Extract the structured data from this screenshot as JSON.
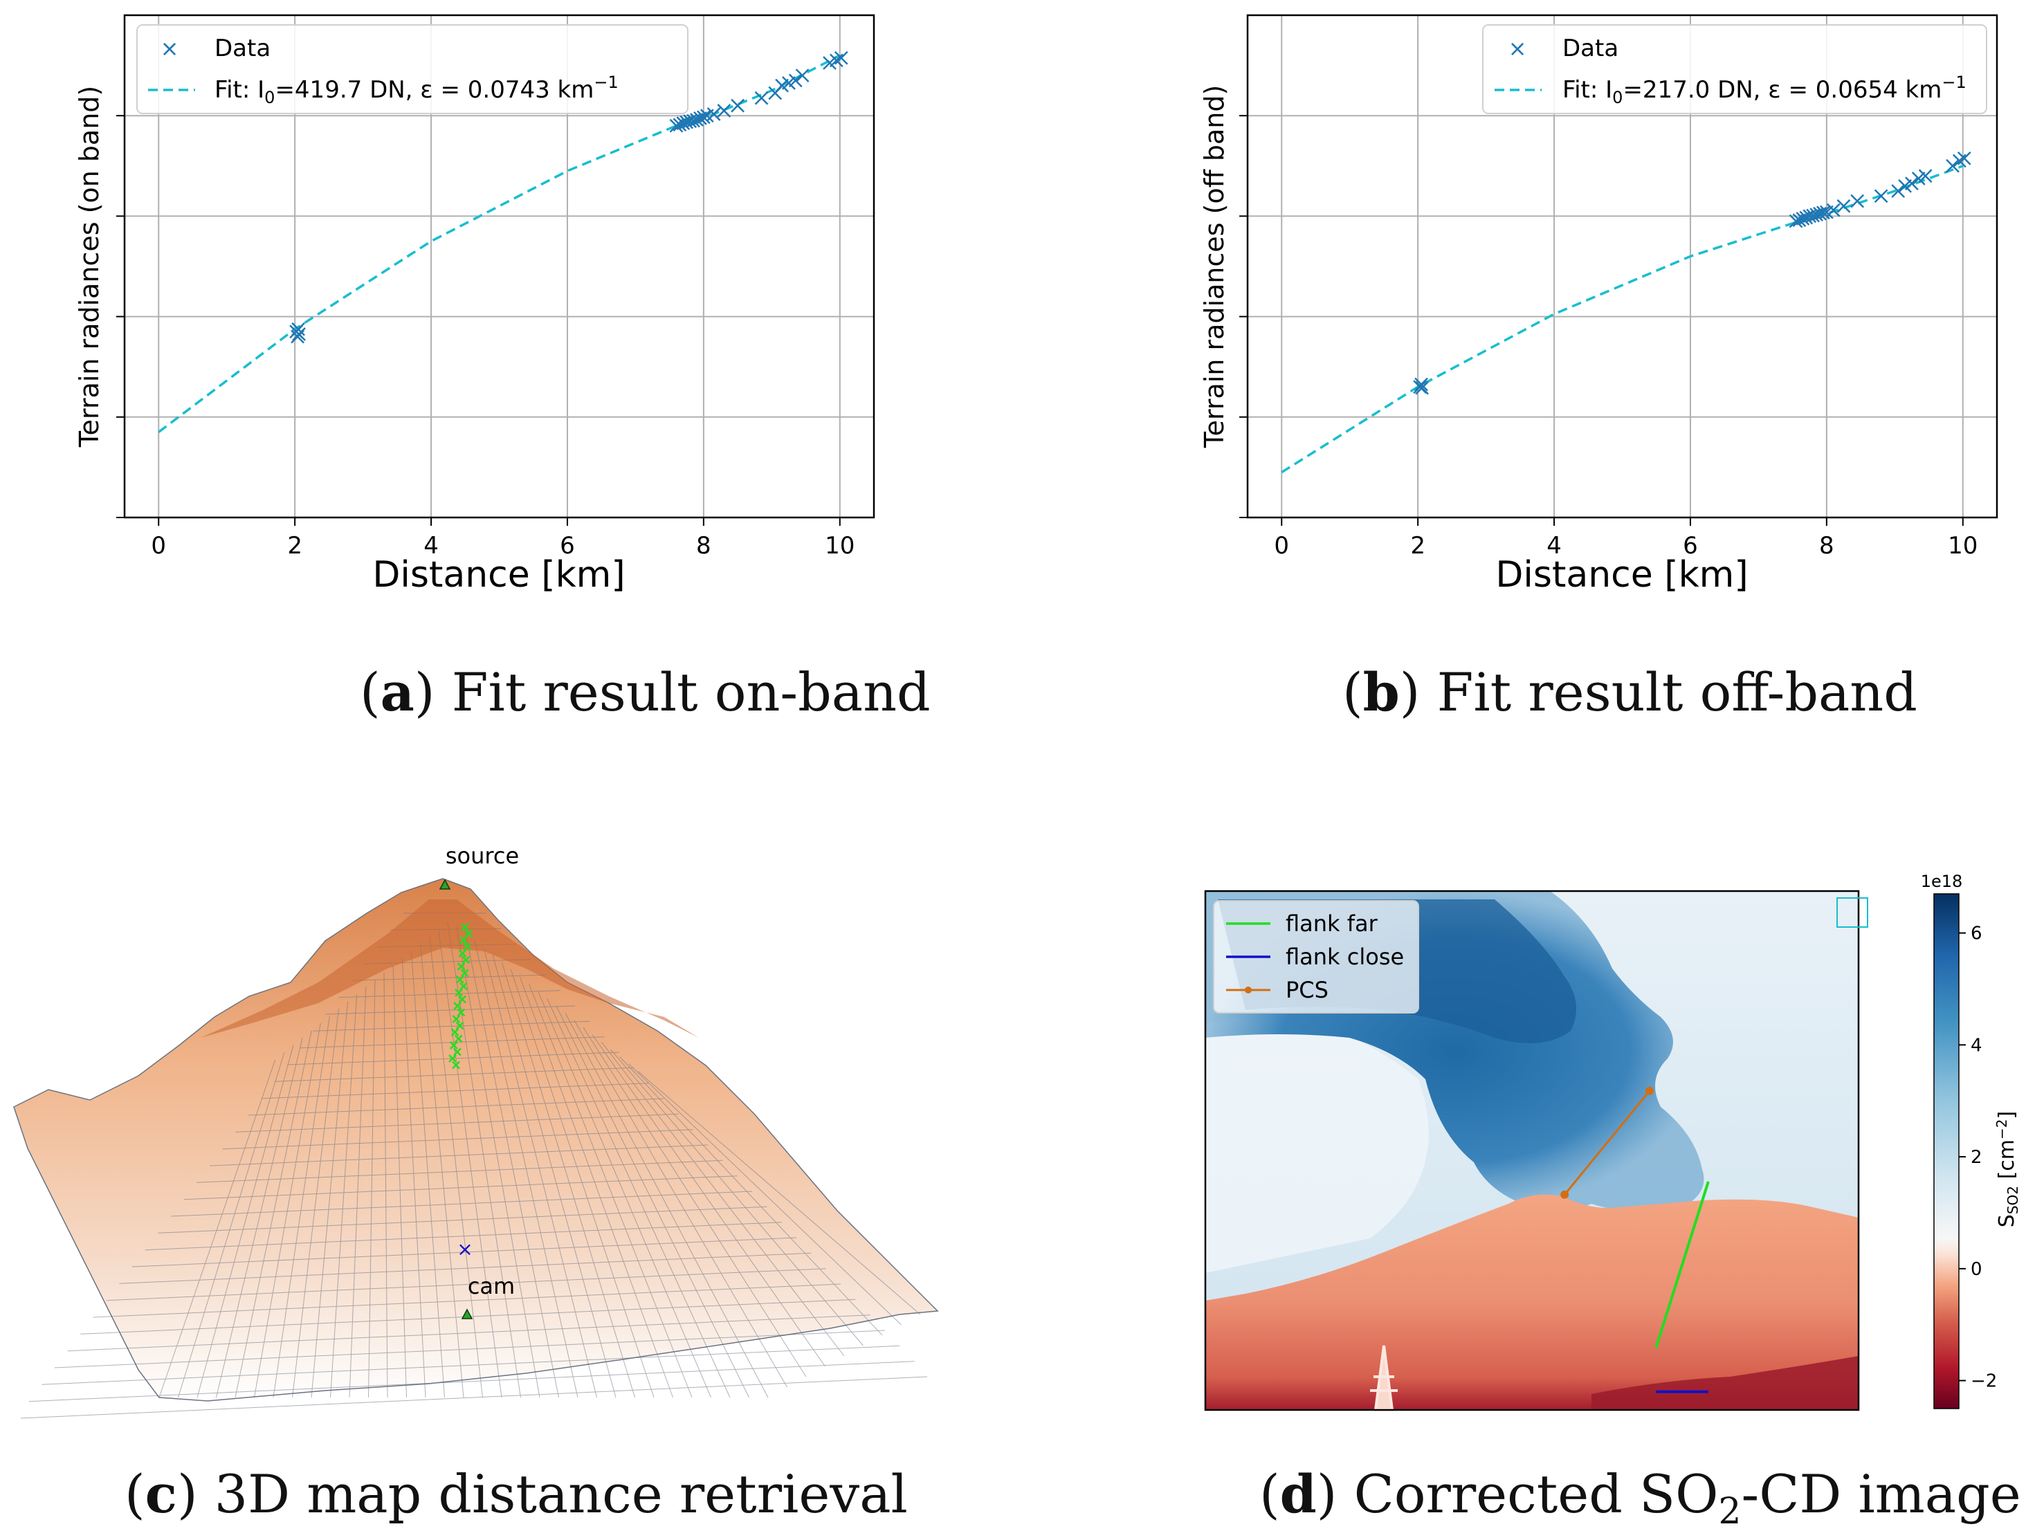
{
  "colors": {
    "data_marker": "#1f77b4",
    "fit_line": "#17becf",
    "grid": "#b0b0b0",
    "surface_top": "#e8955a",
    "surface_bottom": "#ffffff",
    "mesh": "#6b7280",
    "flank_far": "#22dd22",
    "flank_close": "#1010cc",
    "pcs": "#d36e12",
    "plume": "#2f6ea6"
  },
  "chart_data": [
    {
      "type": "scatter",
      "panel": "a",
      "caption_letter": "a",
      "caption_text": " Fit result on-band",
      "xlabel": "Distance [km]",
      "ylabel": "Terrain radiances (on band)",
      "xlim": [
        -0.5,
        10.5
      ],
      "ylim": [
        0,
        1
      ],
      "xticks": [
        "0",
        "2",
        "4",
        "6",
        "8",
        "10"
      ],
      "grid": true,
      "legend_position": "top-left",
      "legend": {
        "data_label": "Data",
        "fit_label": "Fit: I0=419.7 DN, ε = 0.0743 km−1",
        "fit_pre": "Fit: I",
        "fit_sub": "0",
        "fit_mid": "=419.7 DN, ε = 0.0743 km",
        "fit_sup": "−1"
      },
      "fit": {
        "x": [
          0,
          2,
          4,
          6,
          7.6,
          8,
          9,
          10
        ],
        "y": [
          0.17,
          0.375,
          0.55,
          0.69,
          0.78,
          0.795,
          0.85,
          0.92
        ]
      },
      "points": [
        {
          "x": 2.02,
          "y": 0.37
        },
        {
          "x": 2.04,
          "y": 0.36
        },
        {
          "x": 2.05,
          "y": 0.375
        },
        {
          "x": 2.06,
          "y": 0.365
        },
        {
          "x": 7.6,
          "y": 0.78
        },
        {
          "x": 7.65,
          "y": 0.782
        },
        {
          "x": 7.7,
          "y": 0.785
        },
        {
          "x": 7.75,
          "y": 0.787
        },
        {
          "x": 7.8,
          "y": 0.789
        },
        {
          "x": 7.85,
          "y": 0.79
        },
        {
          "x": 7.9,
          "y": 0.792
        },
        {
          "x": 7.95,
          "y": 0.795
        },
        {
          "x": 8.0,
          "y": 0.797
        },
        {
          "x": 8.05,
          "y": 0.8
        },
        {
          "x": 8.15,
          "y": 0.803
        },
        {
          "x": 8.3,
          "y": 0.81
        },
        {
          "x": 8.5,
          "y": 0.82
        },
        {
          "x": 8.85,
          "y": 0.835
        },
        {
          "x": 9.05,
          "y": 0.845
        },
        {
          "x": 9.15,
          "y": 0.86
        },
        {
          "x": 9.25,
          "y": 0.865
        },
        {
          "x": 9.35,
          "y": 0.87
        },
        {
          "x": 9.45,
          "y": 0.88
        },
        {
          "x": 9.85,
          "y": 0.905
        },
        {
          "x": 9.95,
          "y": 0.91
        },
        {
          "x": 10.02,
          "y": 0.915
        }
      ]
    },
    {
      "type": "scatter",
      "panel": "b",
      "caption_letter": "b",
      "caption_text": " Fit result off-band",
      "xlabel": "Distance [km]",
      "ylabel": "Terrain radiances (off band)",
      "xlim": [
        -0.5,
        10.5
      ],
      "ylim": [
        0,
        1
      ],
      "xticks": [
        "0",
        "2",
        "4",
        "6",
        "8",
        "10"
      ],
      "grid": true,
      "legend_position": "top-right",
      "legend": {
        "data_label": "Data",
        "fit_label": "Fit: I0=217.0 DN, ε = 0.0654 km−1",
        "fit_pre": "Fit: I",
        "fit_sub": "0",
        "fit_mid": "=217.0 DN, ε = 0.0654 km",
        "fit_sup": "−1"
      },
      "fit": {
        "x": [
          0,
          2,
          4,
          6,
          7.6,
          8,
          9,
          10
        ],
        "y": [
          0.09,
          0.26,
          0.405,
          0.52,
          0.59,
          0.605,
          0.65,
          0.7
        ]
      },
      "points": [
        {
          "x": 2.03,
          "y": 0.26
        },
        {
          "x": 2.05,
          "y": 0.265
        },
        {
          "x": 2.06,
          "y": 0.258
        },
        {
          "x": 7.55,
          "y": 0.59
        },
        {
          "x": 7.6,
          "y": 0.592
        },
        {
          "x": 7.65,
          "y": 0.595
        },
        {
          "x": 7.7,
          "y": 0.597
        },
        {
          "x": 7.75,
          "y": 0.6
        },
        {
          "x": 7.8,
          "y": 0.601
        },
        {
          "x": 7.85,
          "y": 0.603
        },
        {
          "x": 7.9,
          "y": 0.605
        },
        {
          "x": 7.95,
          "y": 0.607
        },
        {
          "x": 8.0,
          "y": 0.608
        },
        {
          "x": 8.1,
          "y": 0.612
        },
        {
          "x": 8.25,
          "y": 0.62
        },
        {
          "x": 8.45,
          "y": 0.63
        },
        {
          "x": 8.8,
          "y": 0.64
        },
        {
          "x": 9.05,
          "y": 0.65
        },
        {
          "x": 9.15,
          "y": 0.66
        },
        {
          "x": 9.25,
          "y": 0.665
        },
        {
          "x": 9.35,
          "y": 0.675
        },
        {
          "x": 9.45,
          "y": 0.68
        },
        {
          "x": 9.85,
          "y": 0.7
        },
        {
          "x": 9.95,
          "y": 0.71
        },
        {
          "x": 10.02,
          "y": 0.715
        }
      ]
    },
    {
      "type": "heatmap",
      "panel": "d",
      "caption_letter": "d",
      "caption_pre": " Corrected SO",
      "caption_sub": "2",
      "caption_post": "-CD image",
      "colorbar": {
        "exponent": "1e18",
        "ticks": [
          "−2",
          "0",
          "2",
          "4",
          "6"
        ],
        "label_pre": "S",
        "label_sub": "SO2",
        "label_post": " [cm",
        "label_sup": "−2",
        "label_end": "]",
        "range": [
          -2.5,
          6.7
        ]
      },
      "legend": [
        {
          "label": "flank far",
          "color": "#22dd22"
        },
        {
          "label": "flank close",
          "color": "#1010cc"
        },
        {
          "label": "PCS",
          "color": "#d36e12"
        }
      ],
      "lines": {
        "flank_far": [
          [
            0.69,
            0.88
          ],
          [
            0.77,
            0.56
          ]
        ],
        "flank_close": [
          [
            0.69,
            0.965
          ],
          [
            0.77,
            0.965
          ]
        ],
        "pcs": [
          [
            0.55,
            0.585
          ],
          [
            0.68,
            0.385
          ]
        ]
      }
    }
  ],
  "map3d": {
    "caption_letter": "c",
    "caption_text": " 3D map distance retrieval",
    "source_label": "source",
    "cam_label": "cam"
  }
}
